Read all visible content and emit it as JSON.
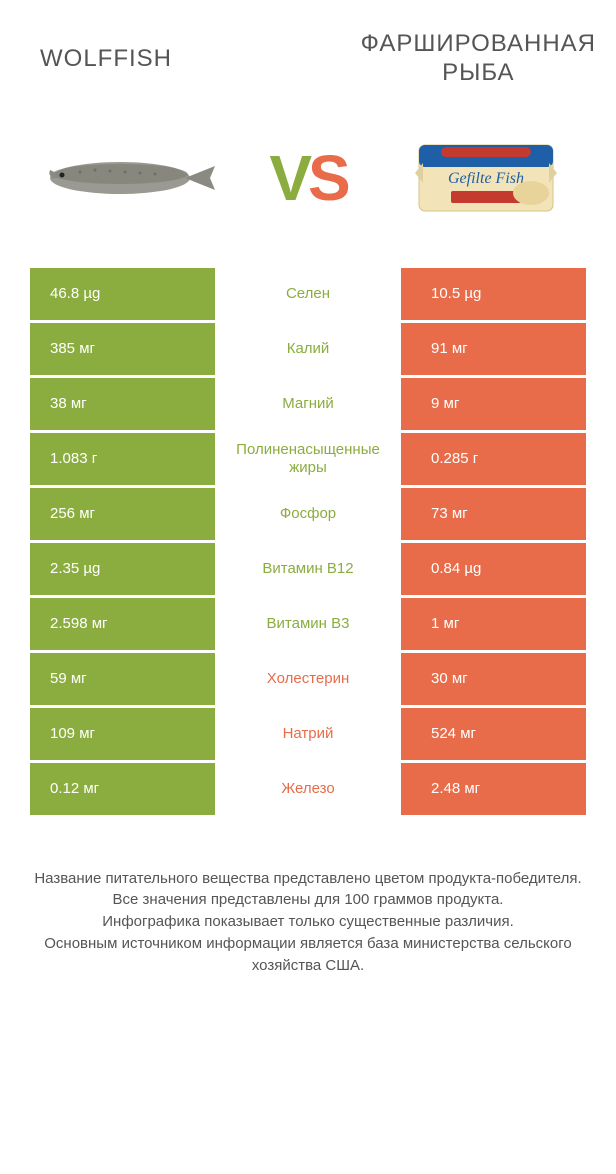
{
  "colors": {
    "green": "#8bad3f",
    "orange": "#e86c4a",
    "text": "#555555",
    "white": "#ffffff",
    "fish_body": "#9a9a92",
    "fish_dark": "#6b6b62",
    "pkg_blue": "#1e5fa8",
    "pkg_cream": "#f2e4b8",
    "pkg_red": "#c43a2e"
  },
  "header": {
    "left": "WOLFFISH",
    "right_line1": "ФАРШИРОВАННАЯ",
    "right_line2": "РЫБА"
  },
  "vs": {
    "v": "V",
    "s": "S"
  },
  "rows": [
    {
      "left": "46.8 µg",
      "mid": "Селен",
      "right": "10.5 µg",
      "winner": "left"
    },
    {
      "left": "385 мг",
      "mid": "Калий",
      "right": "91 мг",
      "winner": "left"
    },
    {
      "left": "38 мг",
      "mid": "Магний",
      "right": "9 мг",
      "winner": "left"
    },
    {
      "left": "1.083 г",
      "mid": "Полиненасыщенные жиры",
      "right": "0.285 г",
      "winner": "left"
    },
    {
      "left": "256 мг",
      "mid": "Фосфор",
      "right": "73 мг",
      "winner": "left"
    },
    {
      "left": "2.35 µg",
      "mid": "Витамин B12",
      "right": "0.84 µg",
      "winner": "left"
    },
    {
      "left": "2.598 мг",
      "mid": "Витамин B3",
      "right": "1 мг",
      "winner": "left"
    },
    {
      "left": "59 мг",
      "mid": "Холестерин",
      "right": "30 мг",
      "winner": "right"
    },
    {
      "left": "109 мг",
      "mid": "Натрий",
      "right": "524 мг",
      "winner": "right"
    },
    {
      "left": "0.12 мг",
      "mid": "Железо",
      "right": "2.48 мг",
      "winner": "right"
    }
  ],
  "footer": {
    "l1": "Название питательного вещества представлено цветом продукта-победителя.",
    "l2": "Все значения представлены для 100 граммов продукта.",
    "l3": "Инфографика показывает только существенные различия.",
    "l4": "Основным источником информации является база министерства сельского хозяйства США."
  }
}
